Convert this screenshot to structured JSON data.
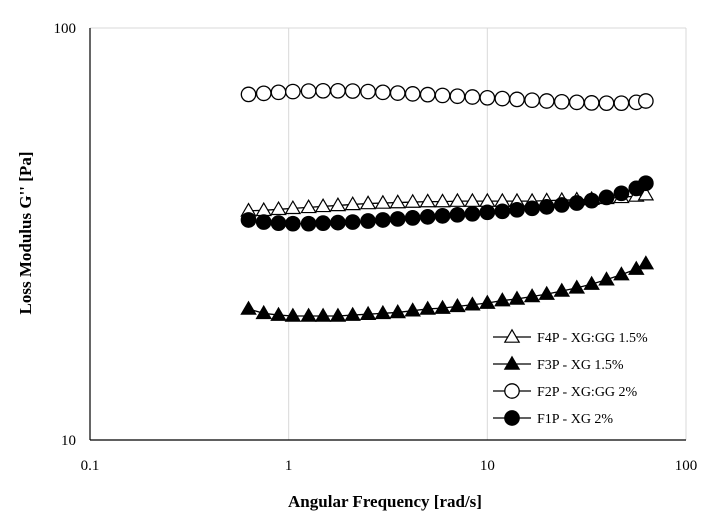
{
  "chart_data": {
    "type": "line",
    "title": "",
    "xlabel": "Angular Frequency [rad/s]",
    "ylabel": "Loss Modulus G'' [Pa]",
    "xscale": "log",
    "yscale": "log",
    "xlim": [
      0.1,
      100
    ],
    "ylim": [
      10,
      100
    ],
    "x_ticks": [
      0.1,
      1,
      10,
      100
    ],
    "x_tick_labels": [
      "0.1",
      "1",
      "10",
      "100"
    ],
    "y_ticks": [
      10,
      100
    ],
    "y_tick_labels": [
      "10",
      "100"
    ],
    "grid": "vertical-major",
    "legend_position": "bottom-right",
    "x": [
      0.628,
      0.749,
      0.889,
      1.05,
      1.26,
      1.49,
      1.77,
      2.1,
      2.51,
      2.98,
      3.54,
      4.21,
      5.01,
      5.95,
      7.07,
      8.41,
      10.0,
      11.9,
      14.1,
      16.8,
      19.9,
      23.7,
      28.2,
      33.5,
      39.8,
      47.3,
      56.2,
      62.8
    ],
    "series": [
      {
        "name": "F4P - XG:GG 1.5%",
        "marker": "open-triangle",
        "values": [
          36.0,
          36.1,
          36.3,
          36.5,
          36.7,
          36.9,
          37.1,
          37.3,
          37.5,
          37.6,
          37.7,
          37.8,
          37.9,
          37.9,
          38.0,
          38.0,
          38.0,
          38.0,
          38.0,
          38.0,
          38.1,
          38.2,
          38.3,
          38.4,
          38.6,
          38.8,
          39.1,
          39.4
        ]
      },
      {
        "name": "F3P - XG 1.5%",
        "marker": "filled-triangle",
        "values": [
          20.8,
          20.3,
          20.1,
          20.0,
          20.0,
          20.0,
          20.0,
          20.1,
          20.2,
          20.3,
          20.4,
          20.6,
          20.8,
          20.9,
          21.1,
          21.3,
          21.5,
          21.8,
          22.0,
          22.3,
          22.6,
          23.0,
          23.4,
          23.9,
          24.5,
          25.2,
          26.0,
          26.8
        ]
      },
      {
        "name": "F2P - XG:GG 2%",
        "marker": "open-circle",
        "values": [
          69.0,
          69.4,
          69.8,
          70.1,
          70.3,
          70.4,
          70.4,
          70.3,
          70.1,
          69.8,
          69.5,
          69.2,
          68.9,
          68.6,
          68.3,
          68.0,
          67.7,
          67.4,
          67.1,
          66.8,
          66.5,
          66.2,
          66.0,
          65.8,
          65.7,
          65.7,
          66.0,
          66.5
        ]
      },
      {
        "name": "F1P - XG 2%",
        "marker": "filled-circle",
        "values": [
          34.2,
          33.8,
          33.6,
          33.5,
          33.5,
          33.6,
          33.7,
          33.8,
          34.0,
          34.2,
          34.4,
          34.6,
          34.8,
          35.0,
          35.2,
          35.4,
          35.7,
          35.9,
          36.2,
          36.5,
          36.8,
          37.2,
          37.6,
          38.1,
          38.8,
          39.7,
          40.8,
          42.0
        ]
      }
    ]
  }
}
